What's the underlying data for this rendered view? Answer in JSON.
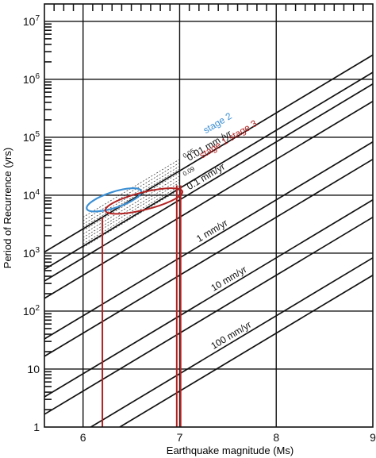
{
  "chart_data": {
    "type": "line",
    "xlabel": "Earthquake magnitude (Ms)",
    "ylabel": "Period of Recurrence (yrs)",
    "x_range": [
      5.6,
      9
    ],
    "y_range_log10": [
      0,
      7.3
    ],
    "y_scale": "log",
    "grid": true,
    "x_ticks": [
      "6",
      "7",
      "8",
      "9"
    ],
    "y_ticks": [
      {
        "base": "1",
        "exp": ""
      },
      {
        "base": "10",
        "exp": ""
      },
      {
        "base": "10",
        "exp": "2"
      },
      {
        "base": "10",
        "exp": "3"
      },
      {
        "base": "10",
        "exp": "4"
      },
      {
        "base": "10",
        "exp": "5"
      },
      {
        "base": "10",
        "exp": "6"
      },
      {
        "base": "10",
        "exp": "7"
      }
    ],
    "slope_log10_per_magnitude": 1.0,
    "rate_lines": [
      {
        "label": "0.01 mm /yr",
        "log10_at_M6": 3.42
      },
      {
        "label": "",
        "log10_at_M6": 3.12
      },
      {
        "label": "0.1 mm/yr",
        "log10_at_M6": 2.92
      },
      {
        "label": "",
        "log10_at_M6": 2.62
      },
      {
        "label": "1 mm/yr",
        "log10_at_M6": 1.92
      },
      {
        "label": "",
        "log10_at_M6": 1.62
      },
      {
        "label": "10 mm/yr",
        "log10_at_M6": 0.92
      },
      {
        "label": "",
        "log10_at_M6": 0.62
      },
      {
        "label": "100 mm/yr",
        "log10_at_M6": -0.08
      },
      {
        "label": "",
        "log10_at_M6": -0.38
      }
    ],
    "dashed_lines_log10_at_M6": [
      3.62,
      3.56,
      3.5,
      3.45,
      3.39,
      3.33,
      3.27,
      3.22,
      3.16,
      3.1
    ],
    "dashed_labels": [
      "0.05",
      "0.09"
    ],
    "ellipse_labels": {
      "stage2": "stage 2",
      "stage13": "stage 1 stage 3"
    },
    "stage2_ellipse": {
      "center_magnitude": 6.32,
      "center_log10_years": 3.92
    },
    "stage13_ellipse": {
      "center_magnitude": 6.63,
      "center_log10_years": 3.9
    },
    "red_bounds_magnitude": [
      6.2,
      6.97,
      7.01
    ]
  },
  "colors": {
    "stage2": "#3b8fd4",
    "stage13": "#b22222",
    "line": "#111111"
  }
}
